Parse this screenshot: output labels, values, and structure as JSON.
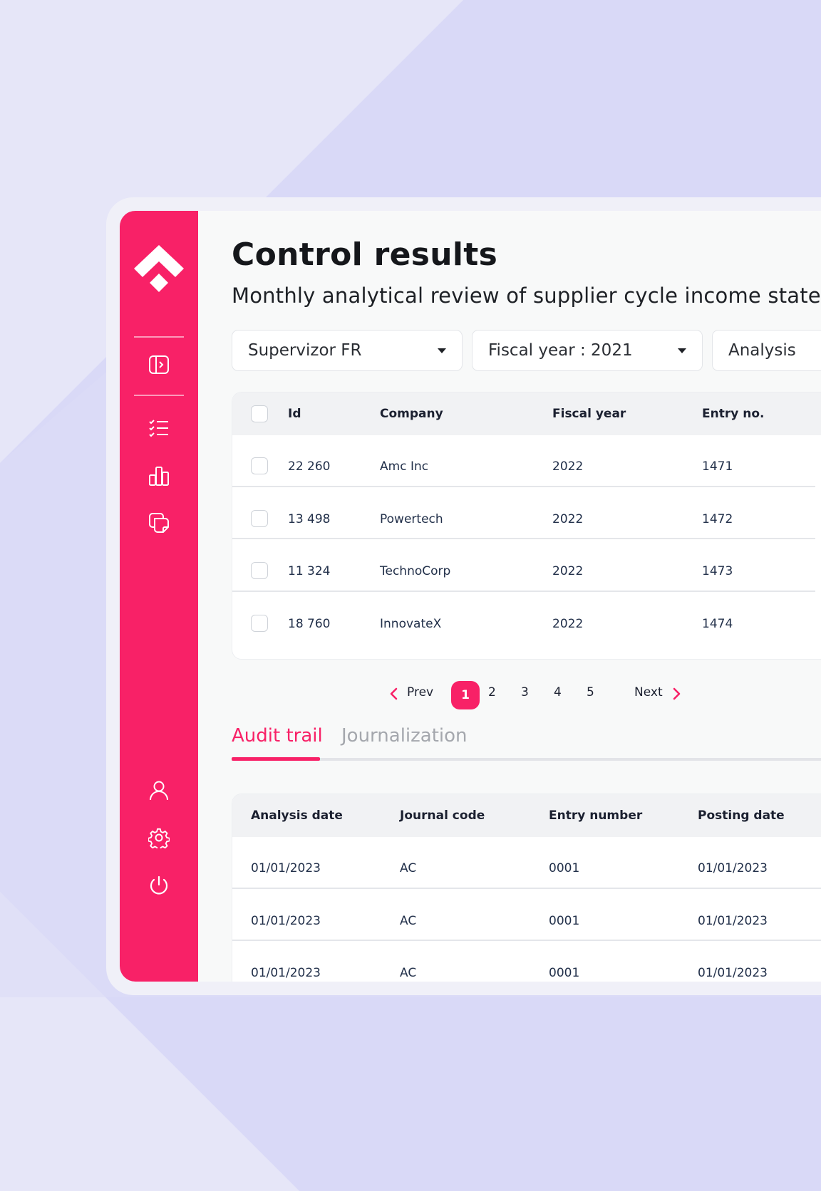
{
  "app": {
    "title": "Control results",
    "subtitle": "Monthly analytical review of supplier cycle income statement",
    "accent_color": "#f82167"
  },
  "sidebar": {
    "logo": "diamond-arrow-logo",
    "items": [
      {
        "icon": "sidebar-toggle-icon"
      },
      {
        "icon": "checklist-icon"
      },
      {
        "icon": "bar-chart-icon"
      },
      {
        "icon": "copy-documents-icon"
      }
    ],
    "bottom_items": [
      {
        "icon": "user-icon"
      },
      {
        "icon": "settings-gear-icon"
      },
      {
        "icon": "power-icon"
      }
    ]
  },
  "filters": [
    {
      "label": "Supervizor FR"
    },
    {
      "label": "Fiscal year : 2021"
    },
    {
      "label": "Analysis"
    }
  ],
  "results_table": {
    "columns": [
      "Id",
      "Company",
      "Fiscal year",
      "Entry no."
    ],
    "rows": [
      {
        "id": "22 260",
        "company": "Amc Inc",
        "fiscal_year": "2022",
        "entry_no": "1471"
      },
      {
        "id": "13 498",
        "company": "Powertech",
        "fiscal_year": "2022",
        "entry_no": "1472"
      },
      {
        "id": "11 324",
        "company": "TechnoCorp",
        "fiscal_year": "2022",
        "entry_no": "1473"
      },
      {
        "id": "18 760",
        "company": "InnovateX",
        "fiscal_year": "2022",
        "entry_no": "1474"
      }
    ]
  },
  "pagination": {
    "prev_label": "Prev",
    "next_label": "Next",
    "current": "1",
    "pages": [
      "2",
      "3",
      "4",
      "5"
    ]
  },
  "tabs": [
    {
      "label": "Audit trail",
      "active": true
    },
    {
      "label": "Journalization",
      "active": false
    }
  ],
  "audit_table": {
    "columns": [
      "Analysis date",
      "Journal code",
      "Entry number",
      "Posting date"
    ],
    "rows": [
      {
        "analysis_date": "01/01/2023",
        "journal_code": "AC",
        "entry_number": "0001",
        "posting_date": "01/01/2023"
      },
      {
        "analysis_date": "01/01/2023",
        "journal_code": "AC",
        "entry_number": "0001",
        "posting_date": "01/01/2023"
      },
      {
        "analysis_date": "01/01/2023",
        "journal_code": "AC",
        "entry_number": "0001",
        "posting_date": "01/01/2023"
      }
    ]
  }
}
